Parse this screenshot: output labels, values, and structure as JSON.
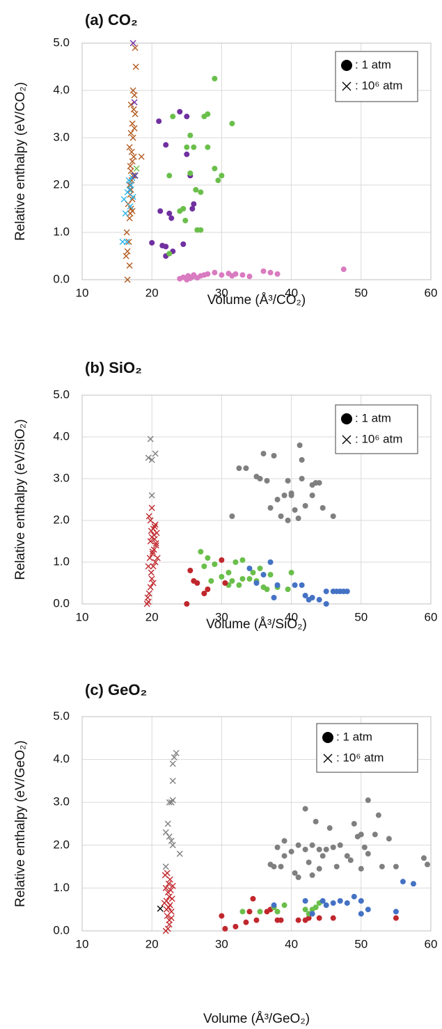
{
  "chart_data": [
    {
      "type": "scatter",
      "title": "(a) CO₂",
      "xlabel": "Volume (Å³/CO₂)",
      "ylabel": "Relative enthalpy (eV/CO₂)",
      "xlim": [
        10,
        60
      ],
      "ylim": [
        0,
        5
      ],
      "xticks": [
        10,
        20,
        30,
        40,
        50,
        60
      ],
      "yticks": [
        {
          "value": 0,
          "label": "0.0"
        },
        {
          "value": 1,
          "label": "1.0"
        },
        {
          "value": 2,
          "label": "2.0"
        },
        {
          "value": 3,
          "label": "3.0"
        },
        {
          "value": 4,
          "label": "4.0"
        },
        {
          "value": 5,
          "label": "5.0"
        }
      ],
      "grid": true,
      "legend": "upper right",
      "legend_entries": [
        {
          "marker": "circle",
          "label": ": 1 atm"
        },
        {
          "marker": "x",
          "label": ": 10⁶ atm"
        }
      ],
      "series": [
        {
          "color": "#b35a1f",
          "marker": "x",
          "x": [
            16.5,
            16.8,
            16.3,
            16.5,
            16.7,
            16.4,
            16.8,
            16.9,
            17.0,
            16.6,
            17.2,
            16.9,
            17.0,
            16.8,
            17.1,
            17.3,
            17.0,
            16.9,
            17.2,
            17.4,
            17.1,
            16.8,
            17.3,
            17.0,
            17.5,
            17.2,
            17.6,
            17.4,
            17.0,
            17.5,
            17.3,
            17.7,
            17.6,
            18.5,
            17.2
          ],
          "values": [
            0.0,
            0.3,
            0.5,
            0.6,
            0.8,
            1.0,
            1.3,
            1.4,
            1.5,
            1.6,
            1.7,
            1.8,
            1.9,
            2.0,
            2.1,
            2.2,
            2.3,
            2.4,
            2.5,
            2.6,
            2.7,
            2.8,
            3.0,
            3.1,
            3.2,
            3.3,
            3.5,
            3.6,
            3.7,
            3.9,
            4.0,
            4.5,
            4.9,
            2.6,
            1.45
          ]
        },
        {
          "color": "#2eb3e8",
          "marker": "x",
          "x": [
            15.8,
            16.2,
            16.0,
            16.5,
            16.8,
            17.0,
            16.7,
            17.2,
            16.4,
            17.5,
            16.9,
            17.3
          ],
          "values": [
            0.8,
            1.4,
            1.7,
            1.85,
            1.9,
            2.0,
            2.1,
            2.15,
            0.8,
            2.2,
            1.55,
            1.75
          ]
        },
        {
          "color": "#6abf4b",
          "marker": "x",
          "x": [
            17.8,
            17.6
          ],
          "values": [
            2.35,
            2.2
          ]
        },
        {
          "color": "#7030a0",
          "marker": "x",
          "x": [
            17.3,
            17.5,
            17.6
          ],
          "values": [
            5.0,
            3.75,
            2.2
          ]
        },
        {
          "color": "#7030a0",
          "marker": "circle",
          "x": [
            20,
            21,
            21.2,
            21.5,
            22,
            22,
            22.5,
            22.8,
            23,
            24,
            25,
            25.5,
            25.8,
            26,
            24.5,
            25,
            22
          ],
          "values": [
            0.78,
            3.35,
            1.45,
            0.72,
            0.7,
            2.85,
            1.4,
            1.3,
            0.6,
            3.55,
            2.65,
            2.2,
            1.5,
            1.6,
            0.75,
            3.45,
            0.5
          ]
        },
        {
          "color": "#6abf4b",
          "marker": "circle",
          "x": [
            22.5,
            22.5,
            23,
            24,
            24.5,
            25,
            25.5,
            25.5,
            26,
            26.5,
            27,
            27,
            27.5,
            28,
            28,
            29,
            29,
            29.5,
            30,
            31.5,
            24.8,
            26.3
          ],
          "values": [
            0.55,
            2.2,
            3.45,
            1.45,
            1.5,
            2.8,
            3.05,
            2.25,
            2.8,
            1.05,
            1.05,
            1.85,
            3.45,
            3.5,
            2.8,
            4.25,
            2.35,
            2.1,
            2.2,
            3.3,
            1.25,
            1.9
          ]
        },
        {
          "color": "#d97bc0",
          "marker": "circle",
          "x": [
            24,
            24.5,
            25,
            25.2,
            25.5,
            25.8,
            26,
            26.5,
            27,
            27.5,
            28,
            29,
            30,
            31,
            31.5,
            32,
            33,
            34,
            36,
            37,
            38,
            47.5
          ],
          "values": [
            0.02,
            0.05,
            0.0,
            0.08,
            0.03,
            0.06,
            0.1,
            0.04,
            0.08,
            0.1,
            0.12,
            0.15,
            0.1,
            0.13,
            0.08,
            0.12,
            0.1,
            0.07,
            0.18,
            0.15,
            0.12,
            0.22
          ]
        }
      ]
    },
    {
      "type": "scatter",
      "title": "(b) SiO₂",
      "xlabel": "Volume (Å³/SiO₂)",
      "ylabel": "Relative enthalpy (eV/SiO₂)",
      "xlim": [
        10,
        60
      ],
      "ylim": [
        0,
        5
      ],
      "xticks": [
        10,
        20,
        30,
        40,
        50,
        60
      ],
      "yticks": [
        {
          "value": 0,
          "label": "0.0"
        },
        {
          "value": 1,
          "label": "1.0"
        },
        {
          "value": 2,
          "label": "2.0"
        },
        {
          "value": 3,
          "label": "3.0"
        },
        {
          "value": 4,
          "label": "4.0"
        },
        {
          "value": 5,
          "label": "5.0"
        }
      ],
      "grid": true,
      "legend": "upper right",
      "legend_entries": [
        {
          "marker": "circle",
          "label": ": 1 atm"
        },
        {
          "marker": "x",
          "label": ": 10⁶ atm"
        }
      ],
      "series": [
        {
          "color": "#7f7f7f",
          "marker": "x",
          "x": [
            19.5,
            19.8,
            20,
            20.5,
            20
          ],
          "values": [
            3.5,
            3.95,
            3.45,
            3.6,
            2.6
          ]
        },
        {
          "color": "#c0272d",
          "marker": "x",
          "x": [
            19.3,
            19.5,
            19.6,
            19.8,
            20.0,
            19.9,
            20.2,
            20.5,
            19.7,
            20.1,
            20.3,
            20.6,
            19.8,
            20.4,
            20.0,
            20.7,
            19.9,
            20.2,
            20.5,
            19.6,
            20.8,
            20.1,
            20.3,
            19.5,
            20.0,
            19.4,
            20.6,
            20.2,
            19.8,
            20.4
          ],
          "values": [
            0.0,
            0.05,
            0.25,
            0.4,
            0.6,
            0.75,
            0.9,
            1.0,
            1.1,
            1.2,
            1.3,
            1.4,
            1.5,
            1.55,
            1.6,
            1.7,
            1.75,
            1.8,
            1.9,
            2.1,
            1.1,
            1.25,
            1.65,
            0.9,
            2.3,
            0.15,
            1.45,
            0.5,
            2.0,
            1.85
          ]
        },
        {
          "color": "#7f7f7f",
          "marker": "circle",
          "x": [
            31.5,
            32.5,
            33.5,
            35,
            35.5,
            36,
            37,
            37.5,
            38,
            38.5,
            39,
            39.5,
            39.5,
            40,
            40.5,
            41,
            41.2,
            41.5,
            41.5,
            42,
            43,
            43,
            43.5,
            44,
            44.5,
            46,
            40,
            36.5
          ],
          "values": [
            2.1,
            3.25,
            3.25,
            3.05,
            3.0,
            3.6,
            2.3,
            3.55,
            2.5,
            2.1,
            2.6,
            2.0,
            2.95,
            2.6,
            2.25,
            2.05,
            3.8,
            3.45,
            3.0,
            2.35,
            2.85,
            2.6,
            2.9,
            2.9,
            2.3,
            2.1,
            2.65,
            2.95
          ]
        },
        {
          "color": "#6abf4b",
          "marker": "circle",
          "x": [
            27,
            28,
            27.5,
            29,
            30,
            31,
            31.5,
            32,
            32.5,
            33,
            33,
            34,
            34.5,
            35,
            35.5,
            36,
            36.5,
            37,
            38,
            40,
            39.5,
            31,
            28.5
          ],
          "values": [
            1.25,
            1.1,
            0.9,
            0.95,
            0.65,
            0.75,
            0.55,
            1.0,
            0.45,
            0.6,
            1.05,
            0.6,
            0.75,
            0.55,
            0.85,
            0.4,
            0.35,
            0.7,
            0.4,
            0.75,
            0.35,
            0.45,
            0.55
          ]
        },
        {
          "color": "#4472c4",
          "marker": "circle",
          "x": [
            34,
            35,
            36,
            37,
            37.5,
            38,
            40.5,
            41.5,
            42,
            42.5,
            43,
            44,
            45,
            45,
            46,
            46.5,
            47,
            47.5,
            48
          ],
          "values": [
            0.85,
            0.5,
            0.7,
            1.0,
            0.15,
            0.45,
            0.45,
            0.45,
            0.2,
            0.1,
            0.15,
            0.1,
            0.0,
            0.3,
            0.3,
            0.3,
            0.3,
            0.3,
            0.3
          ]
        },
        {
          "color": "#c0272d",
          "marker": "circle",
          "x": [
            25,
            25.5,
            26.5,
            27.5,
            28,
            30,
            30.5,
            26
          ],
          "values": [
            0.0,
            0.8,
            0.5,
            0.25,
            0.35,
            1.05,
            0.5,
            0.55
          ]
        }
      ]
    },
    {
      "type": "scatter",
      "title": "(c) GeO₂",
      "xlabel": "Volume (Å³/GeO₂)",
      "ylabel": "Relative enthalpy (eV/GeO₂)",
      "xlim": [
        10,
        60
      ],
      "ylim": [
        0,
        5
      ],
      "xticks": [
        10,
        20,
        30,
        40,
        50,
        60
      ],
      "yticks": [
        {
          "value": 0,
          "label": "0.0"
        },
        {
          "value": 1,
          "label": "1.0"
        },
        {
          "value": 2,
          "label": "2.0"
        },
        {
          "value": 3,
          "label": "3.0"
        },
        {
          "value": 4,
          "label": "4.0"
        },
        {
          "value": 5,
          "label": "5.0"
        }
      ],
      "grid": true,
      "legend": "upper right",
      "legend_entries": [
        {
          "marker": "circle",
          "label": ": 1 atm"
        },
        {
          "marker": "x",
          "label": ": 10⁶ atm"
        }
      ],
      "series": [
        {
          "color": "#7f7f7f",
          "marker": "x",
          "x": [
            22,
            22.5,
            22.5,
            23,
            23,
            23.2,
            23,
            23.5,
            24,
            22,
            22.3,
            22.8,
            22.8,
            23
          ],
          "values": [
            2.3,
            2.2,
            3.0,
            3.05,
            3.9,
            4.05,
            3.5,
            4.15,
            1.8,
            1.5,
            2.5,
            2.1,
            3.0,
            2.0
          ]
        },
        {
          "color": "#c0272d",
          "marker": "x",
          "x": [
            22.0,
            22.3,
            22.5,
            22.2,
            22.8,
            22.4,
            22.6,
            21.8,
            22.1,
            22.9,
            22.5,
            22.3,
            22.7,
            22.0,
            23.0,
            22.4,
            22.6,
            21.9,
            22.2,
            22.8,
            22.5,
            22.1
          ],
          "values": [
            0.0,
            0.05,
            0.25,
            0.35,
            0.45,
            0.55,
            0.6,
            0.65,
            0.7,
            0.75,
            0.8,
            0.9,
            0.95,
            1.0,
            1.05,
            1.1,
            1.2,
            1.3,
            1.35,
            0.3,
            0.15,
            0.5
          ]
        },
        {
          "color": "#000000",
          "marker": "x",
          "x": [
            21.2
          ],
          "values": [
            0.52
          ]
        },
        {
          "color": "#7f7f7f",
          "marker": "circle",
          "x": [
            37,
            37.5,
            38,
            38.5,
            39,
            39,
            40,
            40.5,
            41,
            41,
            42,
            42,
            42.5,
            43,
            43,
            43.5,
            44,
            44,
            44.5,
            45,
            45.5,
            46,
            46.5,
            47,
            48,
            48.5,
            49,
            49.5,
            50,
            50,
            50.5,
            51,
            51,
            52,
            52.5,
            53,
            54,
            55,
            59,
            59.5
          ],
          "values": [
            1.55,
            1.5,
            1.95,
            1.5,
            2.1,
            1.75,
            1.85,
            1.35,
            1.25,
            2.0,
            2.85,
            1.9,
            1.6,
            1.3,
            2.0,
            2.55,
            1.9,
            1.45,
            1.75,
            1.9,
            2.4,
            1.95,
            1.5,
            2.0,
            1.75,
            1.65,
            2.5,
            2.2,
            1.45,
            2.25,
            1.95,
            3.05,
            1.8,
            2.25,
            2.7,
            1.5,
            2.15,
            1.5,
            1.7,
            1.55
          ]
        },
        {
          "color": "#c0272d",
          "marker": "circle",
          "x": [
            30,
            30.5,
            32,
            34,
            34.5,
            35,
            37,
            37.5,
            38,
            38.5,
            41,
            42,
            42.5,
            44,
            46,
            55,
            33.5,
            36.5
          ],
          "values": [
            0.35,
            0.05,
            0.1,
            0.45,
            0.75,
            0.25,
            0.5,
            0.55,
            0.25,
            0.25,
            0.25,
            0.25,
            0.3,
            0.3,
            0.3,
            0.3,
            0.2,
            0.45
          ]
        },
        {
          "color": "#6abf4b",
          "marker": "circle",
          "x": [
            33,
            35.5,
            37.5,
            38,
            39,
            42,
            43,
            43.5,
            44,
            42.5
          ],
          "values": [
            0.45,
            0.45,
            0.55,
            0.45,
            0.6,
            0.5,
            0.5,
            0.55,
            0.65,
            0.4
          ]
        },
        {
          "color": "#4472c4",
          "marker": "circle",
          "x": [
            37.5,
            42,
            43,
            44.5,
            45,
            46,
            47,
            48,
            49,
            50,
            50,
            51,
            55,
            56,
            57.5
          ],
          "values": [
            0.6,
            0.7,
            0.4,
            0.7,
            0.6,
            0.65,
            0.7,
            0.65,
            0.8,
            0.7,
            0.4,
            0.5,
            0.45,
            1.15,
            1.1
          ]
        }
      ]
    }
  ]
}
